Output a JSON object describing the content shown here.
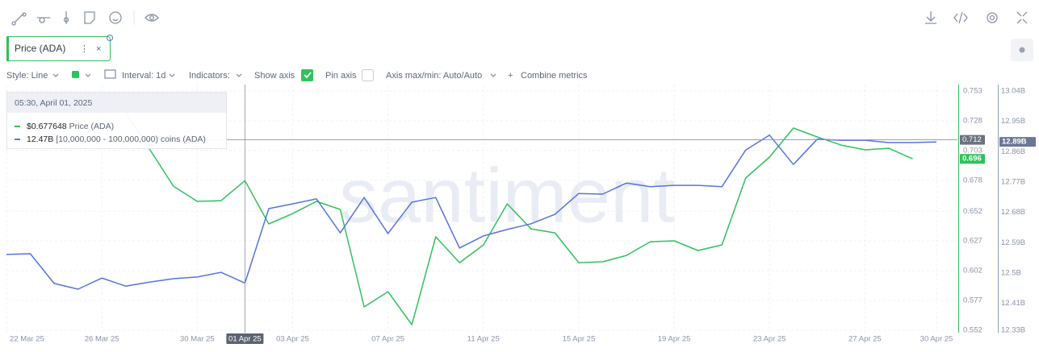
{
  "toolbar": {
    "metric_tag": "Price (ADA)",
    "controls": [
      "Style: Line",
      "Interval: 1d",
      "Indicators:",
      "Show axis",
      "Pin axis",
      "Axis max/min: Auto/Auto",
      "Combine metrics"
    ]
  },
  "watermark": "santiment",
  "chart_data": {
    "type": "line",
    "x": [
      "2025-03-22",
      "2025-03-23",
      "2025-03-24",
      "2025-03-25",
      "2025-03-26",
      "2025-03-27",
      "2025-03-28",
      "2025-03-29",
      "2025-03-30",
      "2025-03-31",
      "2025-04-01",
      "2025-04-02",
      "2025-04-03",
      "2025-04-04",
      "2025-04-05",
      "2025-04-06",
      "2025-04-07",
      "2025-04-08",
      "2025-04-09",
      "2025-04-10",
      "2025-04-11",
      "2025-04-12",
      "2025-04-13",
      "2025-04-14",
      "2025-04-15",
      "2025-04-16",
      "2025-04-17",
      "2025-04-18",
      "2025-04-19",
      "2025-04-20",
      "2025-04-21",
      "2025-04-22",
      "2025-04-23",
      "2025-04-24",
      "2025-04-25",
      "2025-04-26",
      "2025-04-27",
      "2025-04-28",
      "2025-04-29",
      "2025-04-30"
    ],
    "xlim": [
      "2025-03-22",
      "2025-04-30"
    ],
    "xticks": [
      {
        "value": "2025-03-22",
        "label": "22 Mar 25"
      },
      {
        "value": "2025-03-26",
        "label": "26 Mar 25"
      },
      {
        "value": "2025-03-30",
        "label": "30 Mar 25"
      },
      {
        "value": "2025-04-01",
        "label": "01 Apr 25"
      },
      {
        "value": "2025-04-03",
        "label": "03 Apr 25"
      },
      {
        "value": "2025-04-07",
        "label": "07 Apr 25"
      },
      {
        "value": "2025-04-11",
        "label": "11 Apr 25"
      },
      {
        "value": "2025-04-15",
        "label": "15 Apr 25"
      },
      {
        "value": "2025-04-19",
        "label": "19 Apr 25"
      },
      {
        "value": "2025-04-23",
        "label": "23 Apr 25"
      },
      {
        "value": "2025-04-27",
        "label": "27 Apr 25"
      },
      {
        "value": "2025-04-30",
        "label": "30 Apr 25"
      }
    ],
    "ylim": [
      0.552,
      0.753
    ],
    "yticks": [
      0.753,
      0.728,
      0.703,
      0.678,
      0.652,
      0.627,
      0.602,
      0.577,
      0.552
    ],
    "y2lim": [
      12.33,
      13.04
    ],
    "y2ticks": [
      {
        "value": 13.04,
        "label": "13.04B"
      },
      {
        "value": 12.95,
        "label": "12.95B"
      },
      {
        "value": 12.86,
        "label": "12.86B"
      },
      {
        "value": 12.77,
        "label": "12.77B"
      },
      {
        "value": 12.68,
        "label": "12.68B"
      },
      {
        "value": 12.59,
        "label": "12.59B"
      },
      {
        "value": 12.5,
        "label": "12.5B"
      },
      {
        "value": 12.41,
        "label": "12.41B"
      },
      {
        "value": 12.33,
        "label": "12.33B"
      }
    ],
    "grid": true,
    "series": [
      {
        "name": "Price (ADA)",
        "color": "#2fc25b",
        "axis": "y",
        "last_value_label": "0.696",
        "values": [
          null,
          null,
          null,
          null,
          null,
          0.7347,
          0.7043,
          0.6731,
          0.6603,
          0.6609,
          0.677648,
          0.6413,
          0.65,
          0.6603,
          0.6535,
          0.5716,
          0.5844,
          0.5567,
          0.6305,
          0.6088,
          0.6237,
          0.6582,
          0.6372,
          0.6338,
          0.6088,
          0.6095,
          0.6149,
          0.6264,
          0.6271,
          0.619,
          0.6237,
          0.6799,
          0.6975,
          0.7219,
          0.7144,
          0.7076,
          0.7036,
          0.7049,
          0.696,
          null
        ]
      },
      {
        "name": "[10,000,000 - 100,000,000) coins (ADA)",
        "color": "#5474dc",
        "axis": "y2",
        "last_value_label": "12.89B",
        "values": [
          12.555,
          12.557,
          12.469,
          12.452,
          12.485,
          12.461,
          12.473,
          12.483,
          12.488,
          12.502,
          12.47,
          12.691,
          12.705,
          12.72,
          12.619,
          12.724,
          12.617,
          12.71,
          12.724,
          12.574,
          12.61,
          12.629,
          12.646,
          12.674,
          12.736,
          12.734,
          12.767,
          12.756,
          12.76,
          12.76,
          12.756,
          12.865,
          12.909,
          12.822,
          12.897,
          12.894,
          12.894,
          12.887,
          12.887,
          12.889
        ]
      }
    ],
    "crosshair": {
      "x": "2025-04-01",
      "x_label": "01 Apr 25",
      "y": 0.712
    },
    "tooltip": {
      "title": "05:30, April 01, 2025",
      "value_labels": [
        "$0.677648",
        "12.47B"
      ]
    }
  }
}
